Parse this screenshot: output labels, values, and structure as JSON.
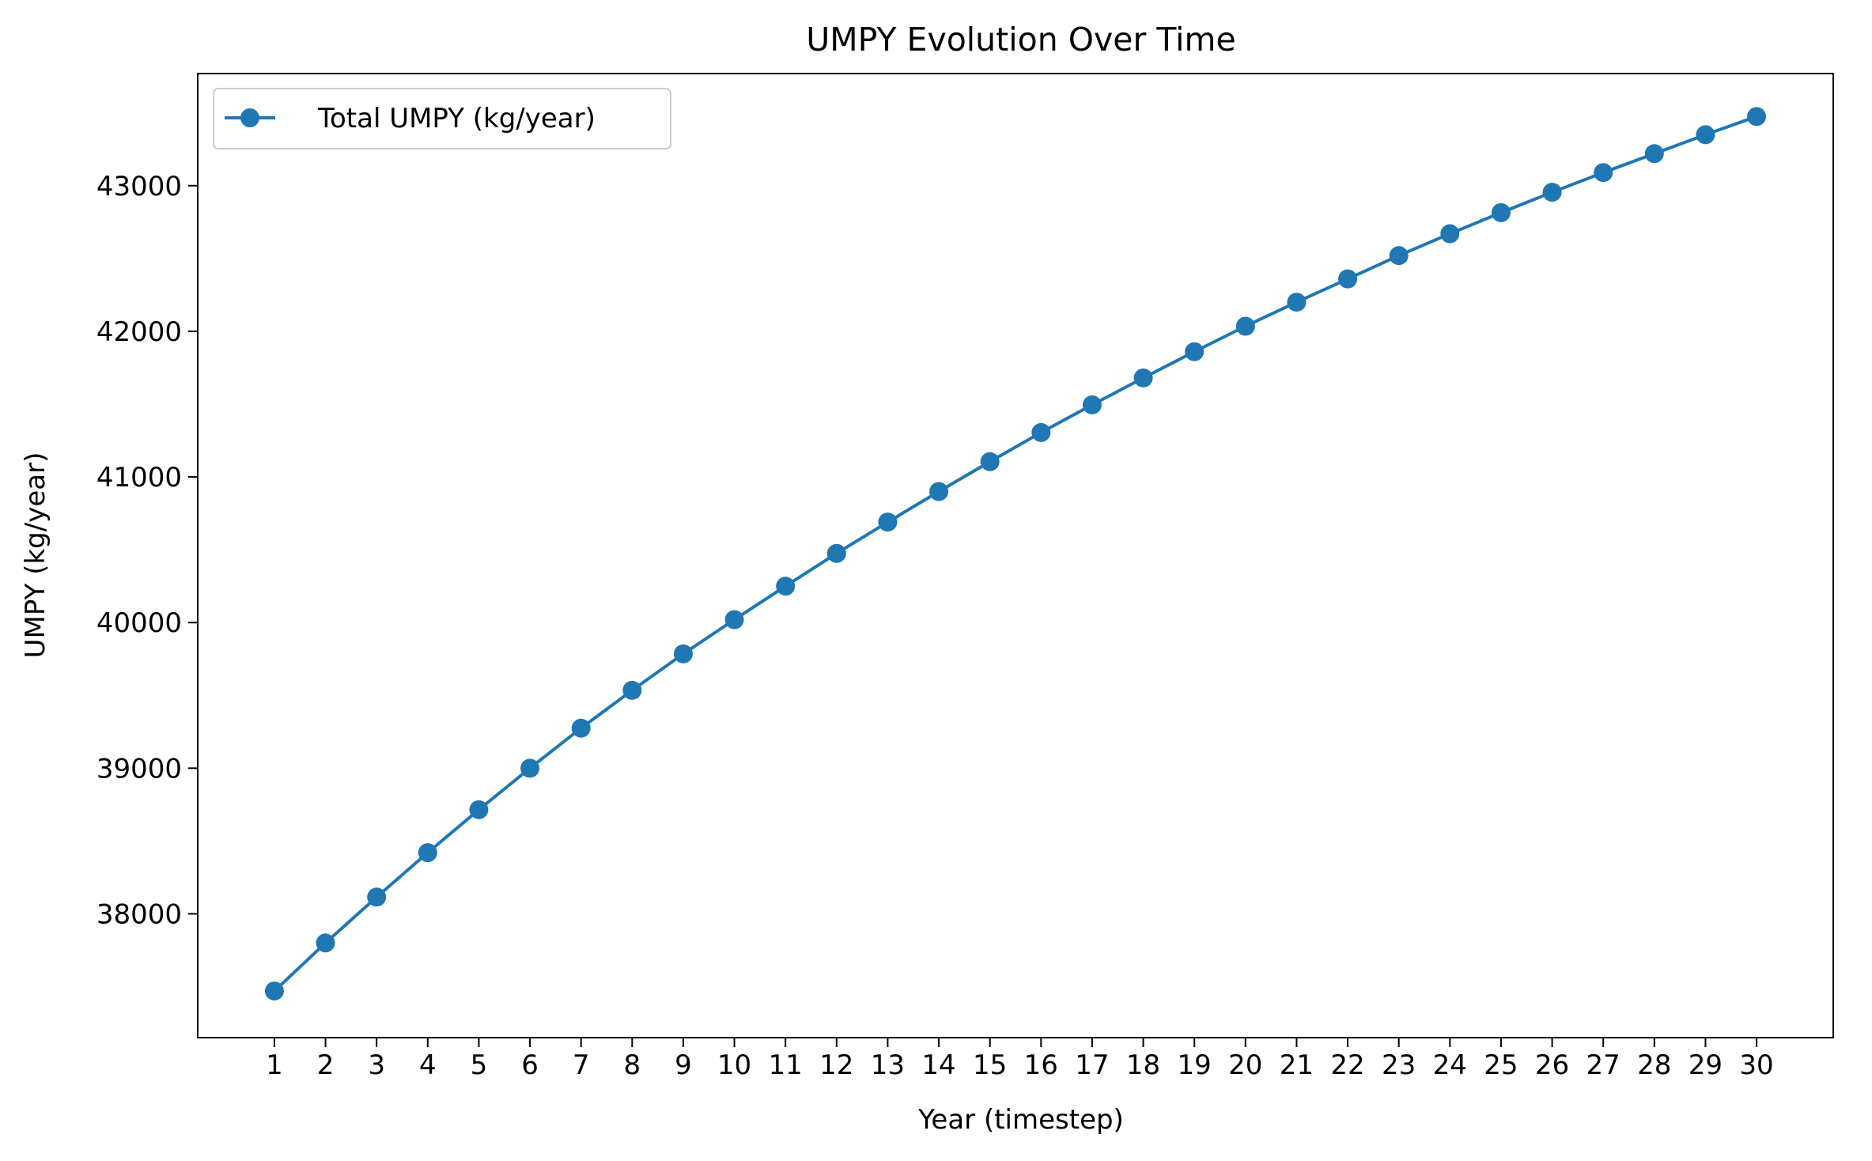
{
  "chart_data": {
    "type": "line",
    "title": "UMPY Evolution Over Time",
    "xlabel": "Year (timestep)",
    "ylabel": "UMPY (kg/year)",
    "x": [
      1,
      2,
      3,
      4,
      5,
      6,
      7,
      8,
      9,
      10,
      11,
      12,
      13,
      14,
      15,
      16,
      17,
      18,
      19,
      20,
      21,
      22,
      23,
      24,
      25,
      26,
      27,
      28,
      29,
      30
    ],
    "xlim": [
      -0.5,
      31.5
    ],
    "ylim": [
      37150,
      43770
    ],
    "yticks": [
      38000,
      39000,
      40000,
      41000,
      42000,
      43000
    ],
    "grid": false,
    "legend_position": "top-left",
    "series": [
      {
        "name": "Total UMPY (kg/year)",
        "color": "#1f77b4",
        "marker": "circle",
        "values": [
          37470,
          37800,
          38115,
          38420,
          38715,
          39000,
          39275,
          39535,
          39785,
          40020,
          40250,
          40475,
          40690,
          40900,
          41105,
          41305,
          41495,
          41680,
          41860,
          42035,
          42200,
          42360,
          42520,
          42670,
          42815,
          42955,
          43090,
          43220,
          43350,
          43475
        ]
      }
    ]
  }
}
